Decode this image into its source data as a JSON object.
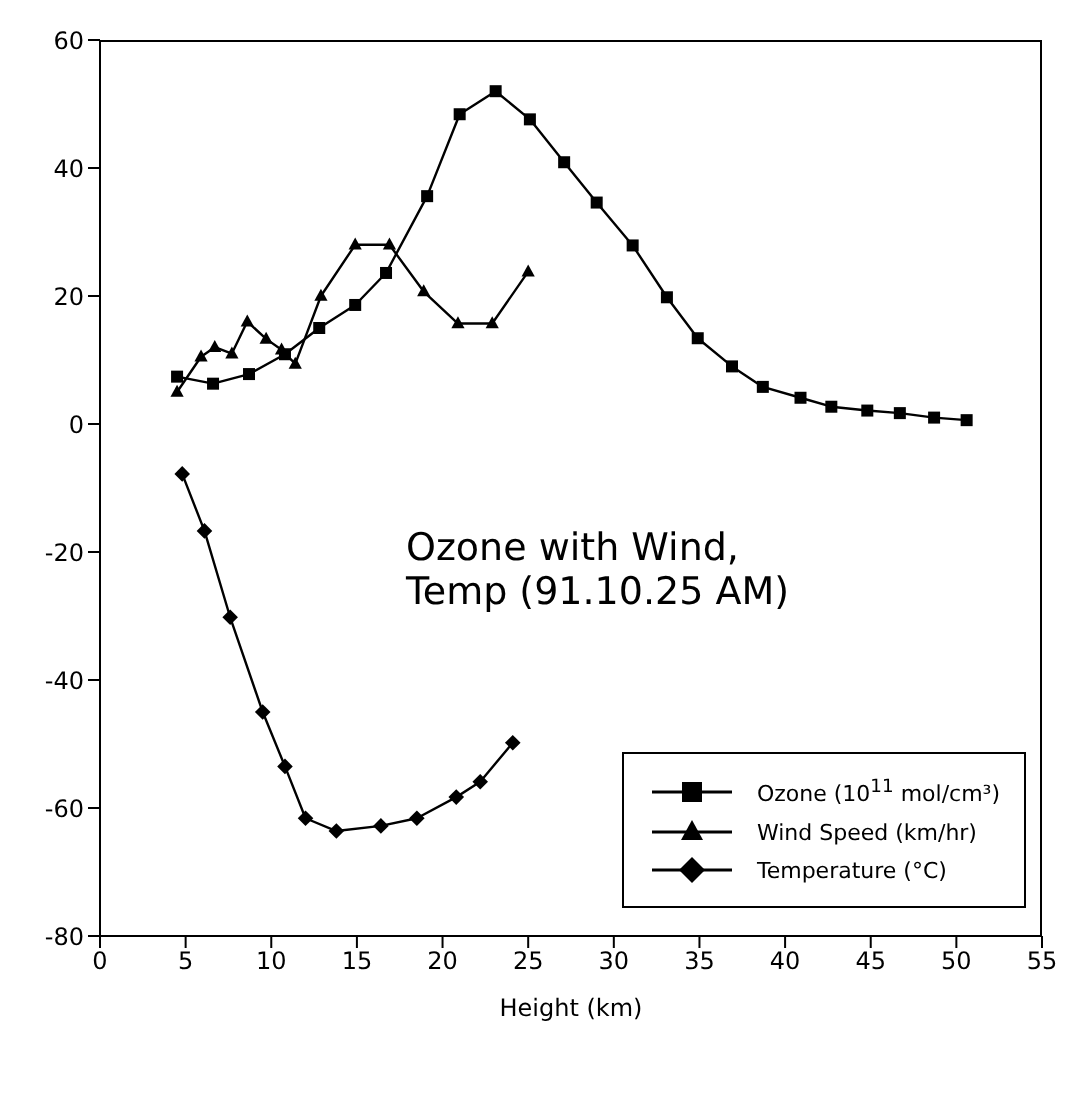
{
  "chart_data": {
    "type": "line",
    "xlabel": "Height (km)",
    "annotations": [
      "Ozone with Wind, Temp (91.10.25 AM)"
    ],
    "xlim": [
      0,
      55
    ],
    "xticks": [
      0,
      5,
      10,
      15,
      20,
      25,
      30,
      35,
      40,
      45,
      50,
      55
    ],
    "ylim": [
      -80,
      60
    ],
    "yticks": [
      -80,
      -60,
      -40,
      -20,
      0,
      20,
      40,
      60
    ],
    "legend": "bottom right",
    "grid": false,
    "line_style": "solid",
    "series": [
      {
        "name": "Ozone (10$^{11}$ mol/cm³)",
        "color": "#000000",
        "marker": "square",
        "x": [
          4.5,
          6.6,
          8.7,
          10.8,
          12.8,
          14.9,
          16.7,
          19.1,
          21.0,
          23.1,
          25.1,
          27.1,
          29.0,
          31.1,
          33.1,
          34.9,
          36.9,
          38.7,
          40.9,
          42.7,
          44.8,
          46.7,
          48.7,
          50.6
        ],
        "values": [
          7.4,
          6.3,
          7.8,
          10.9,
          15,
          18.6,
          23.6,
          35.6,
          48.4,
          52,
          47.6,
          40.9,
          34.6,
          27.9,
          19.8,
          13.4,
          9,
          5.8,
          4.1,
          2.7,
          2.1,
          1.7,
          1,
          0.6
        ]
      },
      {
        "name": "Wind Speed (km/hr)",
        "color": "#000000",
        "marker": "triangle",
        "x": [
          4.5,
          5.9,
          6.7,
          7.7,
          8.6,
          9.7,
          10.6,
          11.4,
          12.9,
          14.9,
          16.9,
          18.9,
          20.9,
          22.9,
          25.0
        ],
        "values": [
          5,
          10.5,
          12,
          11,
          16,
          13.3,
          11.6,
          9.4,
          20,
          28,
          28,
          20.7,
          15.7,
          15.7,
          23.8
        ]
      },
      {
        "name": "Temperature (°C)",
        "color": "#000000",
        "marker": "diamond",
        "x": [
          4.8,
          6.1,
          7.6,
          9.5,
          10.8,
          12.0,
          13.8,
          16.4,
          18.5,
          20.8,
          22.2,
          24.1
        ],
        "values": [
          -7.8,
          -16.7,
          -30.2,
          -45,
          -53.5,
          -61.6,
          -63.6,
          -62.8,
          -61.6,
          -58.3,
          -55.9,
          -49.8
        ]
      }
    ]
  }
}
